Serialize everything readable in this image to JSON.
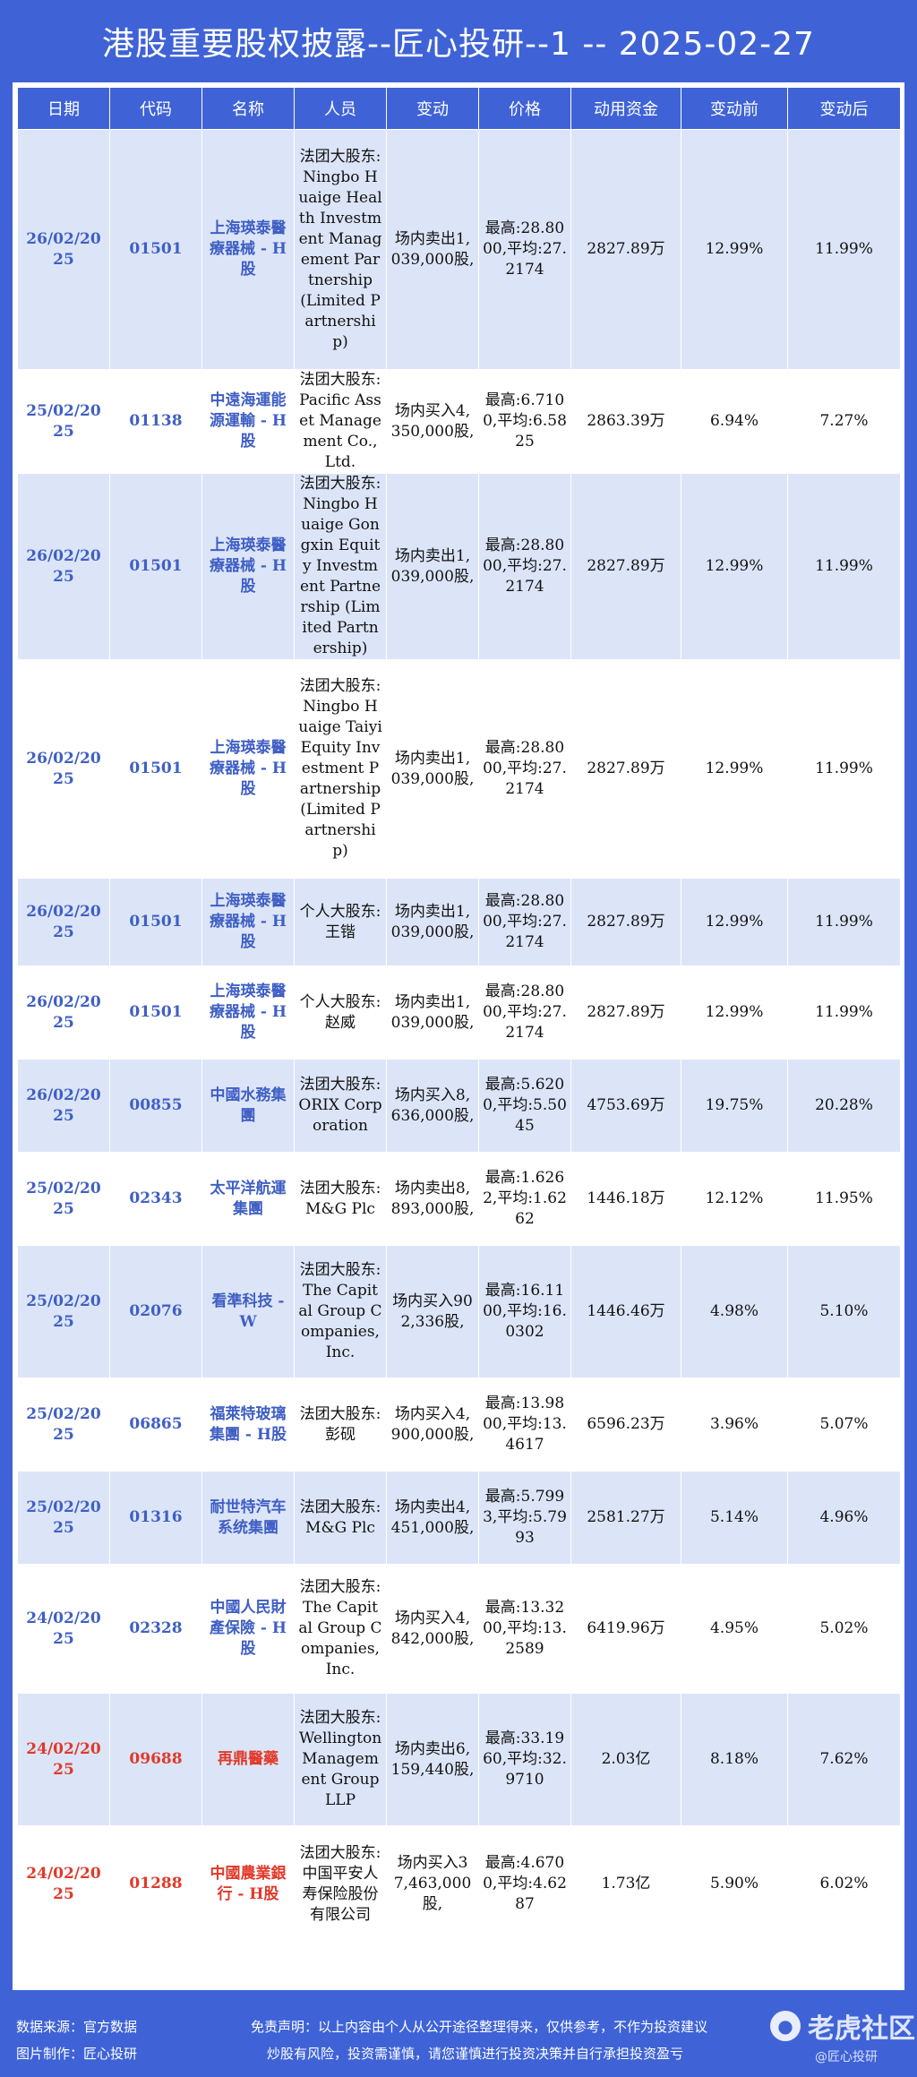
{
  "title": "港股重要股权披露--匠心投研--1 -- 2025-02-27",
  "columns": [
    "日期",
    "代码",
    "名称",
    "人员",
    "变动",
    "价格",
    "动用资金",
    "变动前",
    "变动后"
  ],
  "rows": [
    {
      "date": "26/02/2025",
      "code": "01501",
      "name": "上海瑛泰醫療器械 - H股",
      "person": "法团大股东:Ningbo Huaige Health Investment Management Partnership (Limited Partnership)",
      "change": "场内卖出1,039,000股,",
      "price": "最高:28.8000,平均:27.2174",
      "funds": "2827.89万",
      "before": "12.99%",
      "after": "11.99%",
      "red": false
    },
    {
      "date": "25/02/2025",
      "code": "01138",
      "name": "中遠海運能源運輸 - H股",
      "person": "法团大股东:Pacific Asset Management Co., Ltd.",
      "change": "场内买入4,350,000股,",
      "price": "最高:6.7100,平均:6.5825",
      "funds": "2863.39万",
      "before": "6.94%",
      "after": "7.27%",
      "red": false
    },
    {
      "date": "26/02/2025",
      "code": "01501",
      "name": "上海瑛泰醫療器械 - H股",
      "person": "法团大股东:Ningbo Huaige Gongxin Equity Investment Partnership (Limited Partnership)",
      "change": "场内卖出1,039,000股,",
      "price": "最高:28.8000,平均:27.2174",
      "funds": "2827.89万",
      "before": "12.99%",
      "after": "11.99%",
      "red": false
    },
    {
      "date": "26/02/2025",
      "code": "01501",
      "name": "上海瑛泰醫療器械 - H股",
      "person": "法团大股东:Ningbo Huaige Taiyi Equity Investment Partnership (Limited Partnership)",
      "change": "场内卖出1,039,000股,",
      "price": "最高:28.8000,平均:27.2174",
      "funds": "2827.89万",
      "before": "12.99%",
      "after": "11.99%",
      "red": false
    },
    {
      "date": "26/02/2025",
      "code": "01501",
      "name": "上海瑛泰醫療器械 - H股",
      "person": "个人大股东:王锴",
      "change": "场内卖出1,039,000股,",
      "price": "最高:28.8000,平均:27.2174",
      "funds": "2827.89万",
      "before": "12.99%",
      "after": "11.99%",
      "red": false
    },
    {
      "date": "26/02/2025",
      "code": "01501",
      "name": "上海瑛泰醫療器械 - H股",
      "person": "个人大股东:赵威",
      "change": "场内卖出1,039,000股,",
      "price": "最高:28.8000,平均:27.2174",
      "funds": "2827.89万",
      "before": "12.99%",
      "after": "11.99%",
      "red": false
    },
    {
      "date": "26/02/2025",
      "code": "00855",
      "name": "中國水務集團",
      "person": "法团大股东:ORIX Corporation",
      "change": "场内买入8,636,000股,",
      "price": "最高:5.6200,平均:5.5045",
      "funds": "4753.69万",
      "before": "19.75%",
      "after": "20.28%",
      "red": false
    },
    {
      "date": "25/02/2025",
      "code": "02343",
      "name": "太平洋航運集團",
      "person": "法团大股东:M&G Plc",
      "change": "场内卖出8,893,000股,",
      "price": "最高:1.6262,平均:1.6262",
      "funds": "1446.18万",
      "before": "12.12%",
      "after": "11.95%",
      "red": false
    },
    {
      "date": "25/02/2025",
      "code": "02076",
      "name": "看準科技 - W",
      "person": "法团大股东:The Capital Group Companies, Inc.",
      "change": "场内买入902,336股,",
      "price": "最高:16.1100,平均:16.0302",
      "funds": "1446.46万",
      "before": "4.98%",
      "after": "5.10%",
      "red": false
    },
    {
      "date": "25/02/2025",
      "code": "06865",
      "name": "福萊特玻璃集團 - H股",
      "person": "法团大股东:彭砚",
      "change": "场内买入4,900,000股,",
      "price": "最高:13.9800,平均:13.4617",
      "funds": "6596.23万",
      "before": "3.96%",
      "after": "5.07%",
      "red": false
    },
    {
      "date": "25/02/2025",
      "code": "01316",
      "name": "耐世特汽车系统集團",
      "person": "法团大股东:M&G Plc",
      "change": "场内卖出4,451,000股,",
      "price": "最高:5.7993,平均:5.7993",
      "funds": "2581.27万",
      "before": "5.14%",
      "after": "4.96%",
      "red": false
    },
    {
      "date": "24/02/2025",
      "code": "02328",
      "name": "中國人民財產保險 - H股",
      "person": "法团大股东:The Capital Group Companies, Inc.",
      "change": "场内买入4,842,000股,",
      "price": "最高:13.3200,平均:13.2589",
      "funds": "6419.96万",
      "before": "4.95%",
      "after": "5.02%",
      "red": false
    },
    {
      "date": "24/02/2025",
      "code": "09688",
      "name": "再鼎醫藥",
      "person": "法团大股东:Wellington Management Group LLP",
      "change": "场内卖出6,159,440股,",
      "price": "最高:33.1960,平均:32.9710",
      "funds": "2.03亿",
      "before": "8.18%",
      "after": "7.62%",
      "red": true
    },
    {
      "date": "24/02/2025",
      "code": "01288",
      "name": "中國農業銀行 - H股",
      "person": "法团大股东:中国平安人寿保险股份有限公司",
      "change": "场内买入37,463,000股,",
      "price": "最高:4.6700,平均:4.6287",
      "funds": "1.73亿",
      "before": "5.90%",
      "after": "6.02%",
      "red": true
    }
  ],
  "footer": {
    "source": "数据来源：官方数据",
    "maker": "图片制作：匠心投研",
    "disclaimer1": "免责声明：以上内容由个人从公开途径整理得来，仅供参考，不作为投资建议",
    "disclaimer2": "炒股有风险，投资需谨慎，请您谨慎进行投资决策并自行承担投资盈亏",
    "logo": "老虎社区",
    "watermark": "@匠心投研"
  }
}
